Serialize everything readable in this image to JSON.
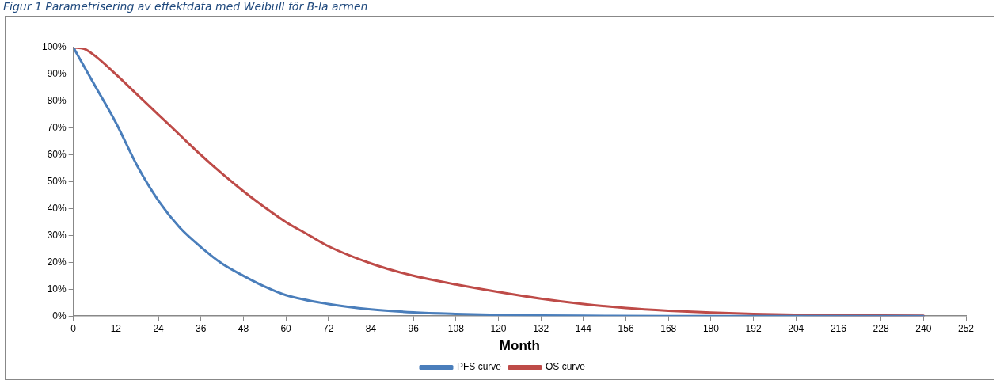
{
  "chart_data": {
    "type": "line",
    "title": "Figur 1 Parametrisering av effektdata med Weibull för B-la armen",
    "xlabel": "Month",
    "xlim": [
      0,
      252
    ],
    "xticks": [
      0,
      12,
      24,
      36,
      48,
      60,
      72,
      84,
      96,
      108,
      120,
      132,
      144,
      156,
      168,
      180,
      192,
      204,
      216,
      228,
      240,
      252
    ],
    "ylim": [
      0,
      100
    ],
    "yticks": [
      {
        "value": 0,
        "label": "0%"
      },
      {
        "value": 10,
        "label": "10%"
      },
      {
        "value": 20,
        "label": "20%"
      },
      {
        "value": 30,
        "label": "30%"
      },
      {
        "value": 40,
        "label": "40%"
      },
      {
        "value": 50,
        "label": "50%"
      },
      {
        "value": 60,
        "label": "60%"
      },
      {
        "value": 70,
        "label": "70%"
      },
      {
        "value": 80,
        "label": "80%"
      },
      {
        "value": 90,
        "label": "90%"
      },
      {
        "value": 100,
        "label": "100%"
      }
    ],
    "grid": false,
    "legend": "bottom",
    "marker": "none",
    "line_style": "solid",
    "series": [
      {
        "name": "PFS curve",
        "color": "#4a7ebb",
        "x": [
          0,
          6,
          12,
          18,
          24,
          30,
          36,
          42,
          48,
          54,
          60,
          72,
          84,
          96,
          108,
          120,
          132,
          144,
          168,
          192,
          216,
          240
        ],
        "values": [
          100,
          86,
          72,
          56,
          43,
          33,
          25.7,
          19.5,
          15,
          11,
          7.8,
          4.5,
          2.5,
          1.4,
          0.8,
          0.4,
          0.2,
          0.1,
          0,
          0,
          0,
          0
        ]
      },
      {
        "name": "OS curve",
        "color": "#be4b48",
        "x": [
          0,
          3,
          6,
          12,
          18,
          24,
          30,
          36,
          42,
          48,
          54,
          60,
          66,
          72,
          84,
          96,
          108,
          120,
          132,
          144,
          156,
          168,
          180,
          192,
          204,
          216,
          228,
          240
        ],
        "values": [
          100,
          99.5,
          97,
          90,
          82.5,
          75,
          67.5,
          60,
          53,
          46.5,
          40.5,
          35,
          30.5,
          26,
          19.6,
          15,
          11.8,
          9,
          6.5,
          4.5,
          3,
          2,
          1.3,
          0.8,
          0.5,
          0.3,
          0.2,
          0.1
        ]
      }
    ]
  }
}
